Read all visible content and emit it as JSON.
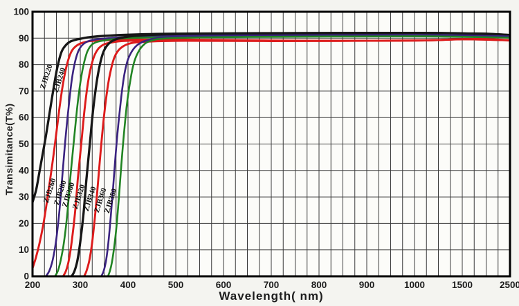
{
  "chart_data": {
    "type": "line",
    "title": "",
    "xlabel": "Wavelength( nm)",
    "ylabel": "Transimitance(T%)",
    "x_ticks": [
      200,
      300,
      400,
      500,
      600,
      700,
      800,
      900,
      1000,
      1500,
      2500
    ],
    "y_ticks": [
      0,
      10,
      20,
      30,
      40,
      50,
      60,
      70,
      80,
      90,
      100
    ],
    "ylim": [
      0,
      100
    ],
    "xlim": [
      200,
      2500
    ],
    "x_axis_scale": "linear 200-1000 per 100nm, then equal-width segments 1000-1500 and 1500-2500",
    "grid": {
      "on": true,
      "color": "#3a3a3a",
      "v_minor_per_major": 4,
      "h_step": 10
    },
    "legend_position": "labels rotated along curves",
    "label_rotation_deg": -72,
    "colors": {
      "black": "#161616",
      "red": "#dd1b1b",
      "purple": "#3a2280",
      "green": "#218423"
    },
    "line_widths": {
      "black": 3.3,
      "red": 2.9,
      "purple": 2.6,
      "green": 2.6
    },
    "series": [
      {
        "name": "ZJB220",
        "color_key": "black",
        "color": "#161616",
        "label_pos": {
          "x": 70,
          "y": 112
        },
        "points": [
          [
            200,
            28
          ],
          [
            208,
            33
          ],
          [
            215,
            40
          ],
          [
            222,
            47
          ],
          [
            228,
            53
          ],
          [
            236,
            62
          ],
          [
            244,
            71
          ],
          [
            252,
            79
          ],
          [
            260,
            84.5
          ],
          [
            268,
            87
          ],
          [
            280,
            88.8
          ],
          [
            300,
            89.8
          ],
          [
            330,
            90.6
          ],
          [
            400,
            91.3
          ],
          [
            500,
            91.7
          ],
          [
            700,
            91.9
          ],
          [
            1000,
            92
          ],
          [
            1500,
            91.8
          ],
          [
            2000,
            91.7
          ],
          [
            2500,
            91.2
          ]
        ]
      },
      {
        "name": "ZJB240",
        "color_key": "red",
        "color": "#dd1b1b",
        "label_pos": {
          "x": 89,
          "y": 117
        },
        "points": [
          [
            200,
            3
          ],
          [
            207,
            7
          ],
          [
            214,
            12
          ],
          [
            222,
            19
          ],
          [
            230,
            28
          ],
          [
            238,
            38
          ],
          [
            247,
            50
          ],
          [
            256,
            63
          ],
          [
            264,
            73
          ],
          [
            272,
            80
          ],
          [
            281,
            84.8
          ],
          [
            291,
            87
          ],
          [
            305,
            88.3
          ],
          [
            330,
            89
          ],
          [
            400,
            89.4
          ],
          [
            500,
            89.5
          ],
          [
            650,
            89.2
          ],
          [
            800,
            89
          ],
          [
            1000,
            89.1
          ],
          [
            1500,
            89.6
          ],
          [
            2000,
            89.7
          ],
          [
            2500,
            89.2
          ]
        ]
      },
      {
        "name": "ZJB260",
        "color_key": "purple",
        "color": "#3a2280",
        "label_pos": {
          "x": 75,
          "y": 277
        },
        "points": [
          [
            228,
            0
          ],
          [
            235,
            2
          ],
          [
            242,
            6
          ],
          [
            249,
            13
          ],
          [
            256,
            24
          ],
          [
            262,
            37
          ],
          [
            268,
            50
          ],
          [
            275,
            63
          ],
          [
            282,
            74
          ],
          [
            289,
            81
          ],
          [
            297,
            85.5
          ],
          [
            308,
            88
          ],
          [
            325,
            89.3
          ],
          [
            360,
            90
          ],
          [
            420,
            90.7
          ],
          [
            550,
            91.1
          ],
          [
            800,
            91.3
          ],
          [
            1200,
            91.2
          ],
          [
            2000,
            91
          ],
          [
            2500,
            90.8
          ]
        ]
      },
      {
        "name": "ZJB280",
        "color_key": "green",
        "color": "#218423",
        "label_pos": {
          "x": 90,
          "y": 280
        },
        "points": [
          [
            247,
            0
          ],
          [
            253,
            2
          ],
          [
            259,
            6
          ],
          [
            266,
            13
          ],
          [
            273,
            24
          ],
          [
            279,
            37
          ],
          [
            286,
            50
          ],
          [
            293,
            63
          ],
          [
            300,
            73
          ],
          [
            307,
            80
          ],
          [
            315,
            85
          ],
          [
            326,
            87.8
          ],
          [
            345,
            89
          ],
          [
            380,
            89.8
          ],
          [
            450,
            90.3
          ],
          [
            600,
            90.6
          ],
          [
            900,
            90.8
          ],
          [
            1500,
            90.6
          ],
          [
            2500,
            90.2
          ]
        ]
      },
      {
        "name": "ZJB300",
        "color_key": "red",
        "color": "#dd1b1b",
        "label_pos": {
          "x": 102,
          "y": 283
        },
        "points": [
          [
            264,
            0
          ],
          [
            270,
            2
          ],
          [
            276,
            6
          ],
          [
            282,
            13
          ],
          [
            289,
            24
          ],
          [
            295,
            37
          ],
          [
            302,
            50
          ],
          [
            309,
            63
          ],
          [
            316,
            73
          ],
          [
            323,
            79.5
          ],
          [
            331,
            84
          ],
          [
            342,
            86.8
          ],
          [
            360,
            88.2
          ],
          [
            400,
            89
          ],
          [
            500,
            89.3
          ],
          [
            700,
            89
          ],
          [
            1000,
            89.1
          ],
          [
            1500,
            89.6
          ],
          [
            2500,
            89.2
          ]
        ]
      },
      {
        "name": "ZJB320",
        "color_key": "black",
        "color": "#161616",
        "label_pos": {
          "x": 117,
          "y": 286
        },
        "points": [
          [
            282,
            0
          ],
          [
            288,
            2
          ],
          [
            294,
            6
          ],
          [
            300,
            13
          ],
          [
            307,
            24
          ],
          [
            313,
            37
          ],
          [
            320,
            50
          ],
          [
            327,
            63
          ],
          [
            334,
            73
          ],
          [
            341,
            80
          ],
          [
            349,
            85
          ],
          [
            360,
            88
          ],
          [
            378,
            89.8
          ],
          [
            410,
            90.8
          ],
          [
            480,
            91.5
          ],
          [
            650,
            91.8
          ],
          [
            1000,
            92
          ],
          [
            1500,
            91.8
          ],
          [
            2500,
            91.2
          ]
        ]
      },
      {
        "name": "ZJB340",
        "color_key": "red",
        "color": "#dd1b1b",
        "label_pos": {
          "x": 133,
          "y": 289
        },
        "points": [
          [
            308,
            0
          ],
          [
            313,
            2
          ],
          [
            319,
            6
          ],
          [
            325,
            13
          ],
          [
            331,
            23
          ],
          [
            337,
            35
          ],
          [
            343,
            48
          ],
          [
            350,
            61
          ],
          [
            357,
            71
          ],
          [
            364,
            78
          ],
          [
            372,
            83
          ],
          [
            383,
            86
          ],
          [
            400,
            87.8
          ],
          [
            430,
            88.6
          ],
          [
            520,
            89
          ],
          [
            700,
            88.9
          ],
          [
            1000,
            89.1
          ],
          [
            1500,
            89.6
          ],
          [
            2500,
            89.2
          ]
        ]
      },
      {
        "name": "ZJB360",
        "color_key": "purple",
        "color": "#3a2280",
        "label_pos": {
          "x": 148,
          "y": 291
        },
        "points": [
          [
            344,
            0
          ],
          [
            349,
            2
          ],
          [
            354,
            6
          ],
          [
            359,
            13
          ],
          [
            364,
            23
          ],
          [
            369,
            34
          ],
          [
            374,
            46
          ],
          [
            380,
            58
          ],
          [
            386,
            68
          ],
          [
            392,
            76
          ],
          [
            399,
            81.5
          ],
          [
            408,
            85
          ],
          [
            420,
            87.5
          ],
          [
            440,
            89.2
          ],
          [
            480,
            90.3
          ],
          [
            600,
            90.9
          ],
          [
            900,
            91.2
          ],
          [
            1500,
            91
          ],
          [
            2500,
            90.7
          ]
        ]
      },
      {
        "name": "ZJB380",
        "color_key": "green",
        "color": "#218423",
        "label_pos": {
          "x": 163,
          "y": 292
        },
        "points": [
          [
            358,
            0
          ],
          [
            362,
            2
          ],
          [
            366,
            5
          ],
          [
            371,
            11
          ],
          [
            376,
            19
          ],
          [
            381,
            30
          ],
          [
            386,
            42
          ],
          [
            391,
            53
          ],
          [
            397,
            64
          ],
          [
            403,
            72
          ],
          [
            410,
            79
          ],
          [
            418,
            83.5
          ],
          [
            430,
            87
          ],
          [
            448,
            89
          ],
          [
            490,
            90
          ],
          [
            650,
            90.5
          ],
          [
            1000,
            90.7
          ],
          [
            1600,
            90.5
          ],
          [
            2500,
            90.2
          ]
        ]
      }
    ]
  }
}
